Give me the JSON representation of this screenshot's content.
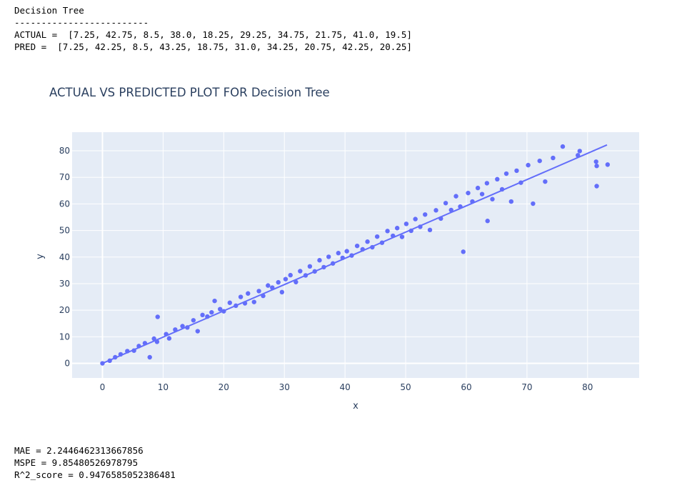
{
  "header": {
    "model_name": "Decision Tree",
    "separator": "-------------------------",
    "actual_line": "ACTUAL =  [7.25, 42.75, 8.5, 38.0, 18.25, 29.25, 34.75, 21.75, 41.0, 19.5]",
    "pred_line": "PRED =  [7.25, 42.25, 8.5, 43.25, 18.75, 31.0, 34.25, 20.75, 42.25, 20.25]"
  },
  "metrics": {
    "mae_line": "MAE = 2.2446462313667856",
    "mspe_line": "MSPE = 9.85480526978795",
    "r2_line": "R^2_score = 0.9476585052386481"
  },
  "colors": {
    "plot_bg": "#e5ecf6",
    "grid": "#ffffff",
    "marker": "#636efa",
    "text": "#2a3f5f"
  },
  "chart_data": {
    "type": "scatter",
    "title": "ACTUAL VS PREDICTED PLOT FOR Decision Tree",
    "xlabel": "x",
    "ylabel": "y",
    "xlim": [
      -5,
      88.5
    ],
    "ylim": [
      -5.5,
      87
    ],
    "xticks": [
      0,
      10,
      20,
      30,
      40,
      50,
      60,
      70,
      80
    ],
    "yticks": [
      0,
      10,
      20,
      30,
      40,
      50,
      60,
      70,
      80
    ],
    "grid": true,
    "legend": "none",
    "trend_line": {
      "x": [
        0,
        83.2
      ],
      "y": [
        0,
        82.2
      ]
    },
    "points": [
      [
        0,
        0
      ],
      [
        1.2,
        1.0
      ],
      [
        2.1,
        2.3
      ],
      [
        3.0,
        3.4
      ],
      [
        4.1,
        4.6
      ],
      [
        5.2,
        4.8
      ],
      [
        6.0,
        6.5
      ],
      [
        7.0,
        7.6
      ],
      [
        7.8,
        2.3
      ],
      [
        8.5,
        9.3
      ],
      [
        9.0,
        8.1
      ],
      [
        9.1,
        17.5
      ],
      [
        10.5,
        11.0
      ],
      [
        11.0,
        9.4
      ],
      [
        12.0,
        12.7
      ],
      [
        13.2,
        14.0
      ],
      [
        14.0,
        13.5
      ],
      [
        15.0,
        16.2
      ],
      [
        15.7,
        12.1
      ],
      [
        16.5,
        18.2
      ],
      [
        17.3,
        17.6
      ],
      [
        18.0,
        19.2
      ],
      [
        18.5,
        23.5
      ],
      [
        19.4,
        20.4
      ],
      [
        20.0,
        19.6
      ],
      [
        21.0,
        22.8
      ],
      [
        22.0,
        21.7
      ],
      [
        22.8,
        25.0
      ],
      [
        23.5,
        22.6
      ],
      [
        24.0,
        26.3
      ],
      [
        25.0,
        23.1
      ],
      [
        25.8,
        27.2
      ],
      [
        26.5,
        25.4
      ],
      [
        27.3,
        29.3
      ],
      [
        28.0,
        28.5
      ],
      [
        29.0,
        30.5
      ],
      [
        29.6,
        26.8
      ],
      [
        30.2,
        31.7
      ],
      [
        31.0,
        33.2
      ],
      [
        31.9,
        30.6
      ],
      [
        32.6,
        34.7
      ],
      [
        33.5,
        33.1
      ],
      [
        34.2,
        36.5
      ],
      [
        35.0,
        34.6
      ],
      [
        35.8,
        38.8
      ],
      [
        36.5,
        36.2
      ],
      [
        37.3,
        40.1
      ],
      [
        38.0,
        37.6
      ],
      [
        38.9,
        41.5
      ],
      [
        39.6,
        39.7
      ],
      [
        40.3,
        42.2
      ],
      [
        41.1,
        40.6
      ],
      [
        42.0,
        44.2
      ],
      [
        42.9,
        42.9
      ],
      [
        43.7,
        45.8
      ],
      [
        44.5,
        43.7
      ],
      [
        45.3,
        47.7
      ],
      [
        46.1,
        45.4
      ],
      [
        47.0,
        49.8
      ],
      [
        47.9,
        48.0
      ],
      [
        48.6,
        50.9
      ],
      [
        49.4,
        47.6
      ],
      [
        50.1,
        52.5
      ],
      [
        50.9,
        49.9
      ],
      [
        51.6,
        54.3
      ],
      [
        52.4,
        51.4
      ],
      [
        53.2,
        56.0
      ],
      [
        54.0,
        50.2
      ],
      [
        55.0,
        57.6
      ],
      [
        55.8,
        54.5
      ],
      [
        56.6,
        60.3
      ],
      [
        57.5,
        57.7
      ],
      [
        58.3,
        62.9
      ],
      [
        59.0,
        59.0
      ],
      [
        59.5,
        42.0
      ],
      [
        60.3,
        64.1
      ],
      [
        61.0,
        60.9
      ],
      [
        61.9,
        66.0
      ],
      [
        62.6,
        63.7
      ],
      [
        63.4,
        67.8
      ],
      [
        64.3,
        61.8
      ],
      [
        65.1,
        69.3
      ],
      [
        65.9,
        65.5
      ],
      [
        66.6,
        71.4
      ],
      [
        67.4,
        60.9
      ],
      [
        68.3,
        72.5
      ],
      [
        69.0,
        68.0
      ],
      [
        70.2,
        74.6
      ],
      [
        71.0,
        60.1
      ],
      [
        72.1,
        76.2
      ],
      [
        73.0,
        68.4
      ],
      [
        74.3,
        77.3
      ],
      [
        75.9,
        81.6
      ],
      [
        78.4,
        78.3
      ],
      [
        78.7,
        79.9
      ],
      [
        81.4,
        75.9
      ],
      [
        81.5,
        74.3
      ],
      [
        81.5,
        66.7
      ],
      [
        83.3,
        74.8
      ],
      [
        63.5,
        53.6
      ]
    ]
  }
}
